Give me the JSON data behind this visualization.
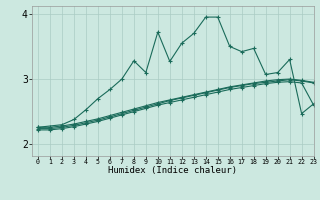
{
  "xlabel": "Humidex (Indice chaleur)",
  "bg_color": "#cce8e0",
  "line_color": "#1a6b5a",
  "grid_color": "#aaccc4",
  "xlim": [
    -0.5,
    23
  ],
  "ylim": [
    1.82,
    4.12
  ],
  "xticks": [
    0,
    1,
    2,
    3,
    4,
    5,
    6,
    7,
    8,
    9,
    10,
    11,
    12,
    13,
    14,
    15,
    16,
    17,
    18,
    19,
    20,
    21,
    22,
    23
  ],
  "yticks": [
    2,
    3,
    4
  ],
  "line_smooth1": [
    2.26,
    2.26,
    2.28,
    2.31,
    2.35,
    2.39,
    2.44,
    2.49,
    2.54,
    2.59,
    2.64,
    2.68,
    2.72,
    2.76,
    2.8,
    2.84,
    2.88,
    2.91,
    2.94,
    2.97,
    2.99,
    3.0,
    2.98,
    2.95
  ],
  "line_smooth2": [
    2.24,
    2.24,
    2.26,
    2.29,
    2.33,
    2.37,
    2.42,
    2.47,
    2.52,
    2.57,
    2.62,
    2.67,
    2.71,
    2.75,
    2.79,
    2.83,
    2.87,
    2.9,
    2.93,
    2.95,
    2.97,
    2.99,
    2.97,
    2.94
  ],
  "line_smooth3": [
    2.22,
    2.22,
    2.24,
    2.27,
    2.31,
    2.35,
    2.4,
    2.45,
    2.5,
    2.55,
    2.6,
    2.64,
    2.68,
    2.72,
    2.76,
    2.8,
    2.84,
    2.87,
    2.9,
    2.93,
    2.95,
    2.96,
    2.94,
    2.6
  ],
  "line_spiky": [
    2.26,
    null,
    2.3,
    2.38,
    2.53,
    2.7,
    2.84,
    3.0,
    3.28,
    3.1,
    3.72,
    3.27,
    3.55,
    3.7,
    3.95,
    3.95,
    3.5,
    3.42,
    3.47,
    3.07,
    3.1,
    3.3,
    2.47,
    2.62
  ]
}
